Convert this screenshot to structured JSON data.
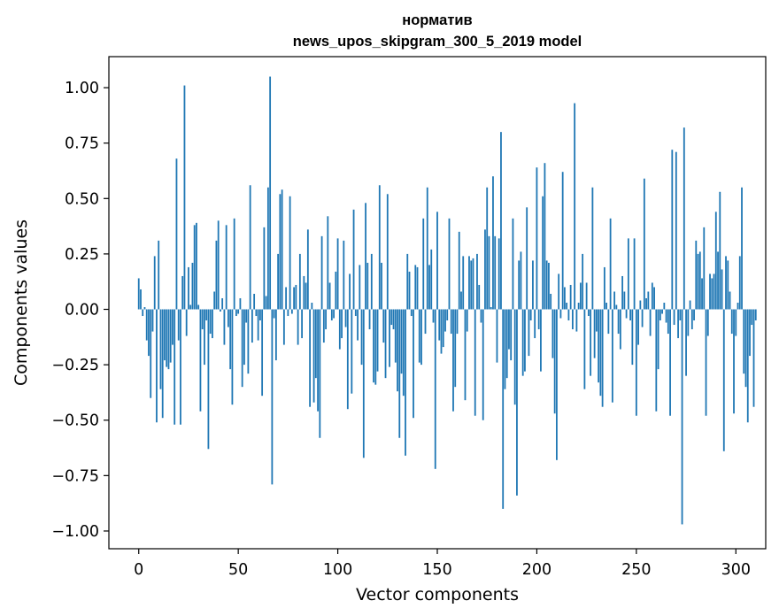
{
  "chart_data": {
    "type": "bar",
    "title_lines": [
      "норматив",
      "news_upos_skipgram_300_5_2019 model"
    ],
    "xlabel": "Vector components",
    "ylabel": "Components values",
    "xlim": [
      -15,
      315
    ],
    "ylim": [
      -1.08,
      1.14
    ],
    "xticks": [
      0,
      50,
      100,
      150,
      200,
      250,
      300
    ],
    "xtick_labels": [
      "0",
      "50",
      "100",
      "150",
      "200",
      "250",
      "300"
    ],
    "yticks": [
      -1.0,
      -0.75,
      -0.5,
      -0.25,
      0.0,
      0.25,
      0.5,
      0.75,
      1.0
    ],
    "ytick_labels": [
      "−1.00",
      "−0.75",
      "−0.50",
      "−0.25",
      "0.00",
      "0.25",
      "0.50",
      "0.75",
      "1.00"
    ],
    "bar_color": "#1f77b4",
    "grid": false,
    "values": [
      0.14,
      0.09,
      -0.03,
      0.01,
      -0.14,
      -0.21,
      -0.4,
      -0.1,
      0.24,
      -0.51,
      0.31,
      -0.36,
      -0.49,
      -0.23,
      -0.26,
      -0.27,
      -0.24,
      -0.16,
      -0.52,
      0.68,
      -0.14,
      -0.52,
      0.15,
      1.01,
      -0.12,
      0.19,
      0.02,
      0.21,
      0.38,
      0.39,
      0.02,
      -0.46,
      -0.09,
      -0.25,
      -0.05,
      -0.63,
      -0.11,
      -0.13,
      0.08,
      0.31,
      0.4,
      -0.01,
      0.05,
      -0.16,
      0.38,
      -0.08,
      -0.27,
      -0.43,
      0.41,
      -0.03,
      -0.02,
      0.05,
      -0.35,
      -0.25,
      -0.06,
      -0.29,
      0.56,
      -0.15,
      0.07,
      -0.03,
      -0.14,
      -0.05,
      -0.39,
      0.37,
      0.06,
      0.55,
      1.05,
      -0.79,
      -0.04,
      -0.23,
      0.25,
      0.52,
      0.54,
      -0.16,
      0.1,
      -0.03,
      0.51,
      -0.02,
      0.1,
      0.11,
      -0.16,
      0.25,
      -0.13,
      0.15,
      0.12,
      0.36,
      -0.44,
      0.03,
      -0.42,
      -0.31,
      -0.46,
      -0.58,
      0.33,
      -0.15,
      -0.09,
      0.42,
      0.12,
      -0.05,
      -0.04,
      0.17,
      0.32,
      -0.18,
      -0.13,
      0.31,
      -0.08,
      -0.45,
      0.16,
      -0.38,
      0.45,
      -0.03,
      -0.14,
      0.2,
      -0.25,
      -0.67,
      0.48,
      0.21,
      -0.09,
      0.25,
      -0.33,
      -0.34,
      -0.28,
      0.56,
      0.21,
      -0.15,
      -0.31,
      0.52,
      -0.26,
      -0.07,
      -0.09,
      -0.24,
      -0.37,
      -0.58,
      -0.29,
      -0.39,
      -0.66,
      0.25,
      0.17,
      -0.03,
      -0.49,
      0.2,
      0.19,
      -0.24,
      -0.25,
      0.41,
      -0.11,
      0.55,
      0.2,
      0.27,
      -0.06,
      -0.72,
      0.44,
      -0.14,
      -0.2,
      -0.17,
      -0.1,
      -0.05,
      0.41,
      -0.11,
      -0.46,
      -0.35,
      -0.11,
      0.35,
      0.08,
      0.24,
      -0.41,
      -0.1,
      0.24,
      0.22,
      0.23,
      -0.48,
      0.25,
      0.11,
      -0.06,
      -0.5,
      0.36,
      0.55,
      0.33,
      0.01,
      0.6,
      0.33,
      -0.24,
      0.32,
      0.8,
      -0.9,
      -0.36,
      -0.31,
      -0.18,
      -0.23,
      0.41,
      -0.43,
      -0.84,
      0.22,
      0.26,
      -0.3,
      -0.28,
      0.46,
      -0.21,
      -0.05,
      0.22,
      -0.13,
      0.64,
      -0.09,
      -0.28,
      0.51,
      0.66,
      0.22,
      0.21,
      0.07,
      -0.22,
      -0.47,
      -0.68,
      0.16,
      -0.04,
      0.62,
      0.1,
      0.03,
      -0.05,
      0.11,
      -0.09,
      0.93,
      -0.1,
      0.03,
      0.12,
      0.25,
      -0.36,
      0.12,
      -0.03,
      -0.3,
      0.55,
      -0.22,
      -0.1,
      -0.33,
      -0.39,
      -0.44,
      0.19,
      0.03,
      -0.11,
      0.41,
      -0.42,
      0.08,
      0.02,
      -0.11,
      -0.18,
      0.15,
      0.08,
      -0.04,
      0.32,
      -0.05,
      -0.25,
      0.32,
      -0.48,
      -0.16,
      0.04,
      -0.08,
      0.59,
      0.05,
      0.08,
      -0.12,
      0.12,
      0.1,
      -0.46,
      -0.27,
      -0.05,
      -0.02,
      0.03,
      -0.06,
      -0.11,
      -0.48,
      0.72,
      -0.07,
      0.71,
      -0.13,
      -0.05,
      -0.97,
      0.82,
      -0.3,
      -0.12,
      0.04,
      -0.09,
      -0.05,
      0.31,
      0.25,
      0.26,
      0.14,
      0.37,
      -0.48,
      -0.12,
      0.16,
      0.14,
      0.16,
      0.44,
      0.26,
      0.53,
      0.18,
      -0.64,
      0.24,
      0.22,
      0.08,
      -0.11,
      -0.47,
      -0.12,
      0.03,
      0.24,
      0.55,
      -0.29,
      -0.35,
      -0.51,
      -0.21,
      -0.07,
      -0.44,
      -0.05
    ]
  }
}
